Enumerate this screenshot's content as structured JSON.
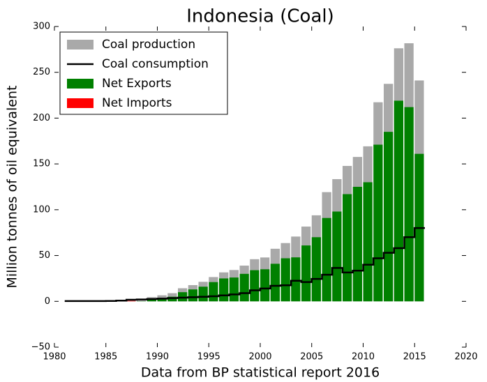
{
  "chart_data": {
    "type": "bar",
    "title": "Indonesia (Coal)",
    "x_label": "Data from BP statistical report 2016",
    "y_label": "Million tonnes of oil equivalent",
    "x": [
      1981,
      1982,
      1983,
      1984,
      1985,
      1986,
      1987,
      1988,
      1989,
      1990,
      1991,
      1992,
      1993,
      1994,
      1995,
      1996,
      1997,
      1998,
      1999,
      2000,
      2001,
      2002,
      2003,
      2004,
      2005,
      2006,
      2007,
      2008,
      2009,
      2010,
      2011,
      2012,
      2013,
      2014,
      2015
    ],
    "series": [
      {
        "name": "Coal production",
        "color": "#a9a9a9",
        "kind": "bar",
        "values": [
          0.2,
          0.3,
          0.3,
          0.6,
          1.2,
          1.4,
          1.6,
          2.2,
          4.6,
          6.6,
          8.9,
          14.3,
          17.7,
          21.3,
          26.5,
          31.6,
          34.2,
          39.0,
          46.0,
          47.9,
          57.4,
          63.6,
          70.7,
          81.6,
          93.9,
          119.2,
          133.4,
          147.8,
          157.6,
          169.2,
          217.3,
          237.4,
          276.2,
          281.7,
          241.1
        ]
      },
      {
        "name": "Coal consumption",
        "color": "#000000",
        "kind": "step",
        "values": [
          0.3,
          0.3,
          0.3,
          0.3,
          0.4,
          0.8,
          1.7,
          2,
          2.5,
          3,
          3.5,
          4,
          4.5,
          5,
          5.5,
          6.5,
          7.5,
          9,
          12,
          14,
          17,
          17.5,
          22.5,
          21,
          24.5,
          29,
          36.5,
          31.5,
          33.5,
          40,
          47,
          53,
          58,
          70,
          80
        ]
      },
      {
        "name": "Net Exports",
        "color": "#008000",
        "kind": "bar",
        "values": [
          0,
          0,
          0,
          0.2,
          0.4,
          0.2,
          0,
          0.2,
          2,
          3.5,
          5,
          10,
          13,
          16,
          21,
          25,
          26,
          30,
          34,
          35,
          41,
          47,
          48,
          61,
          70,
          91,
          98,
          117,
          125,
          130,
          171,
          185,
          219,
          212,
          161
        ]
      },
      {
        "name": "Net Imports",
        "color": "#ff0000",
        "kind": "bar",
        "values": [
          0.1,
          0,
          0,
          0,
          0,
          0,
          0.5,
          0,
          0,
          0,
          0,
          0,
          0,
          0,
          0,
          0,
          0,
          0,
          0,
          0,
          0,
          0,
          0,
          0,
          0,
          0,
          0,
          0,
          0,
          0,
          0,
          0,
          0,
          0,
          0
        ]
      }
    ],
    "xlim": [
      1980,
      2020
    ],
    "xticks": [
      1980,
      1985,
      1990,
      1995,
      2000,
      2005,
      2010,
      2015,
      2020
    ],
    "ylim": [
      -50,
      300
    ],
    "yticks": [
      {
        "value": -50,
        "label": "−50"
      },
      0,
      50,
      100,
      150,
      200,
      250,
      300
    ],
    "legend": "upper-left"
  }
}
